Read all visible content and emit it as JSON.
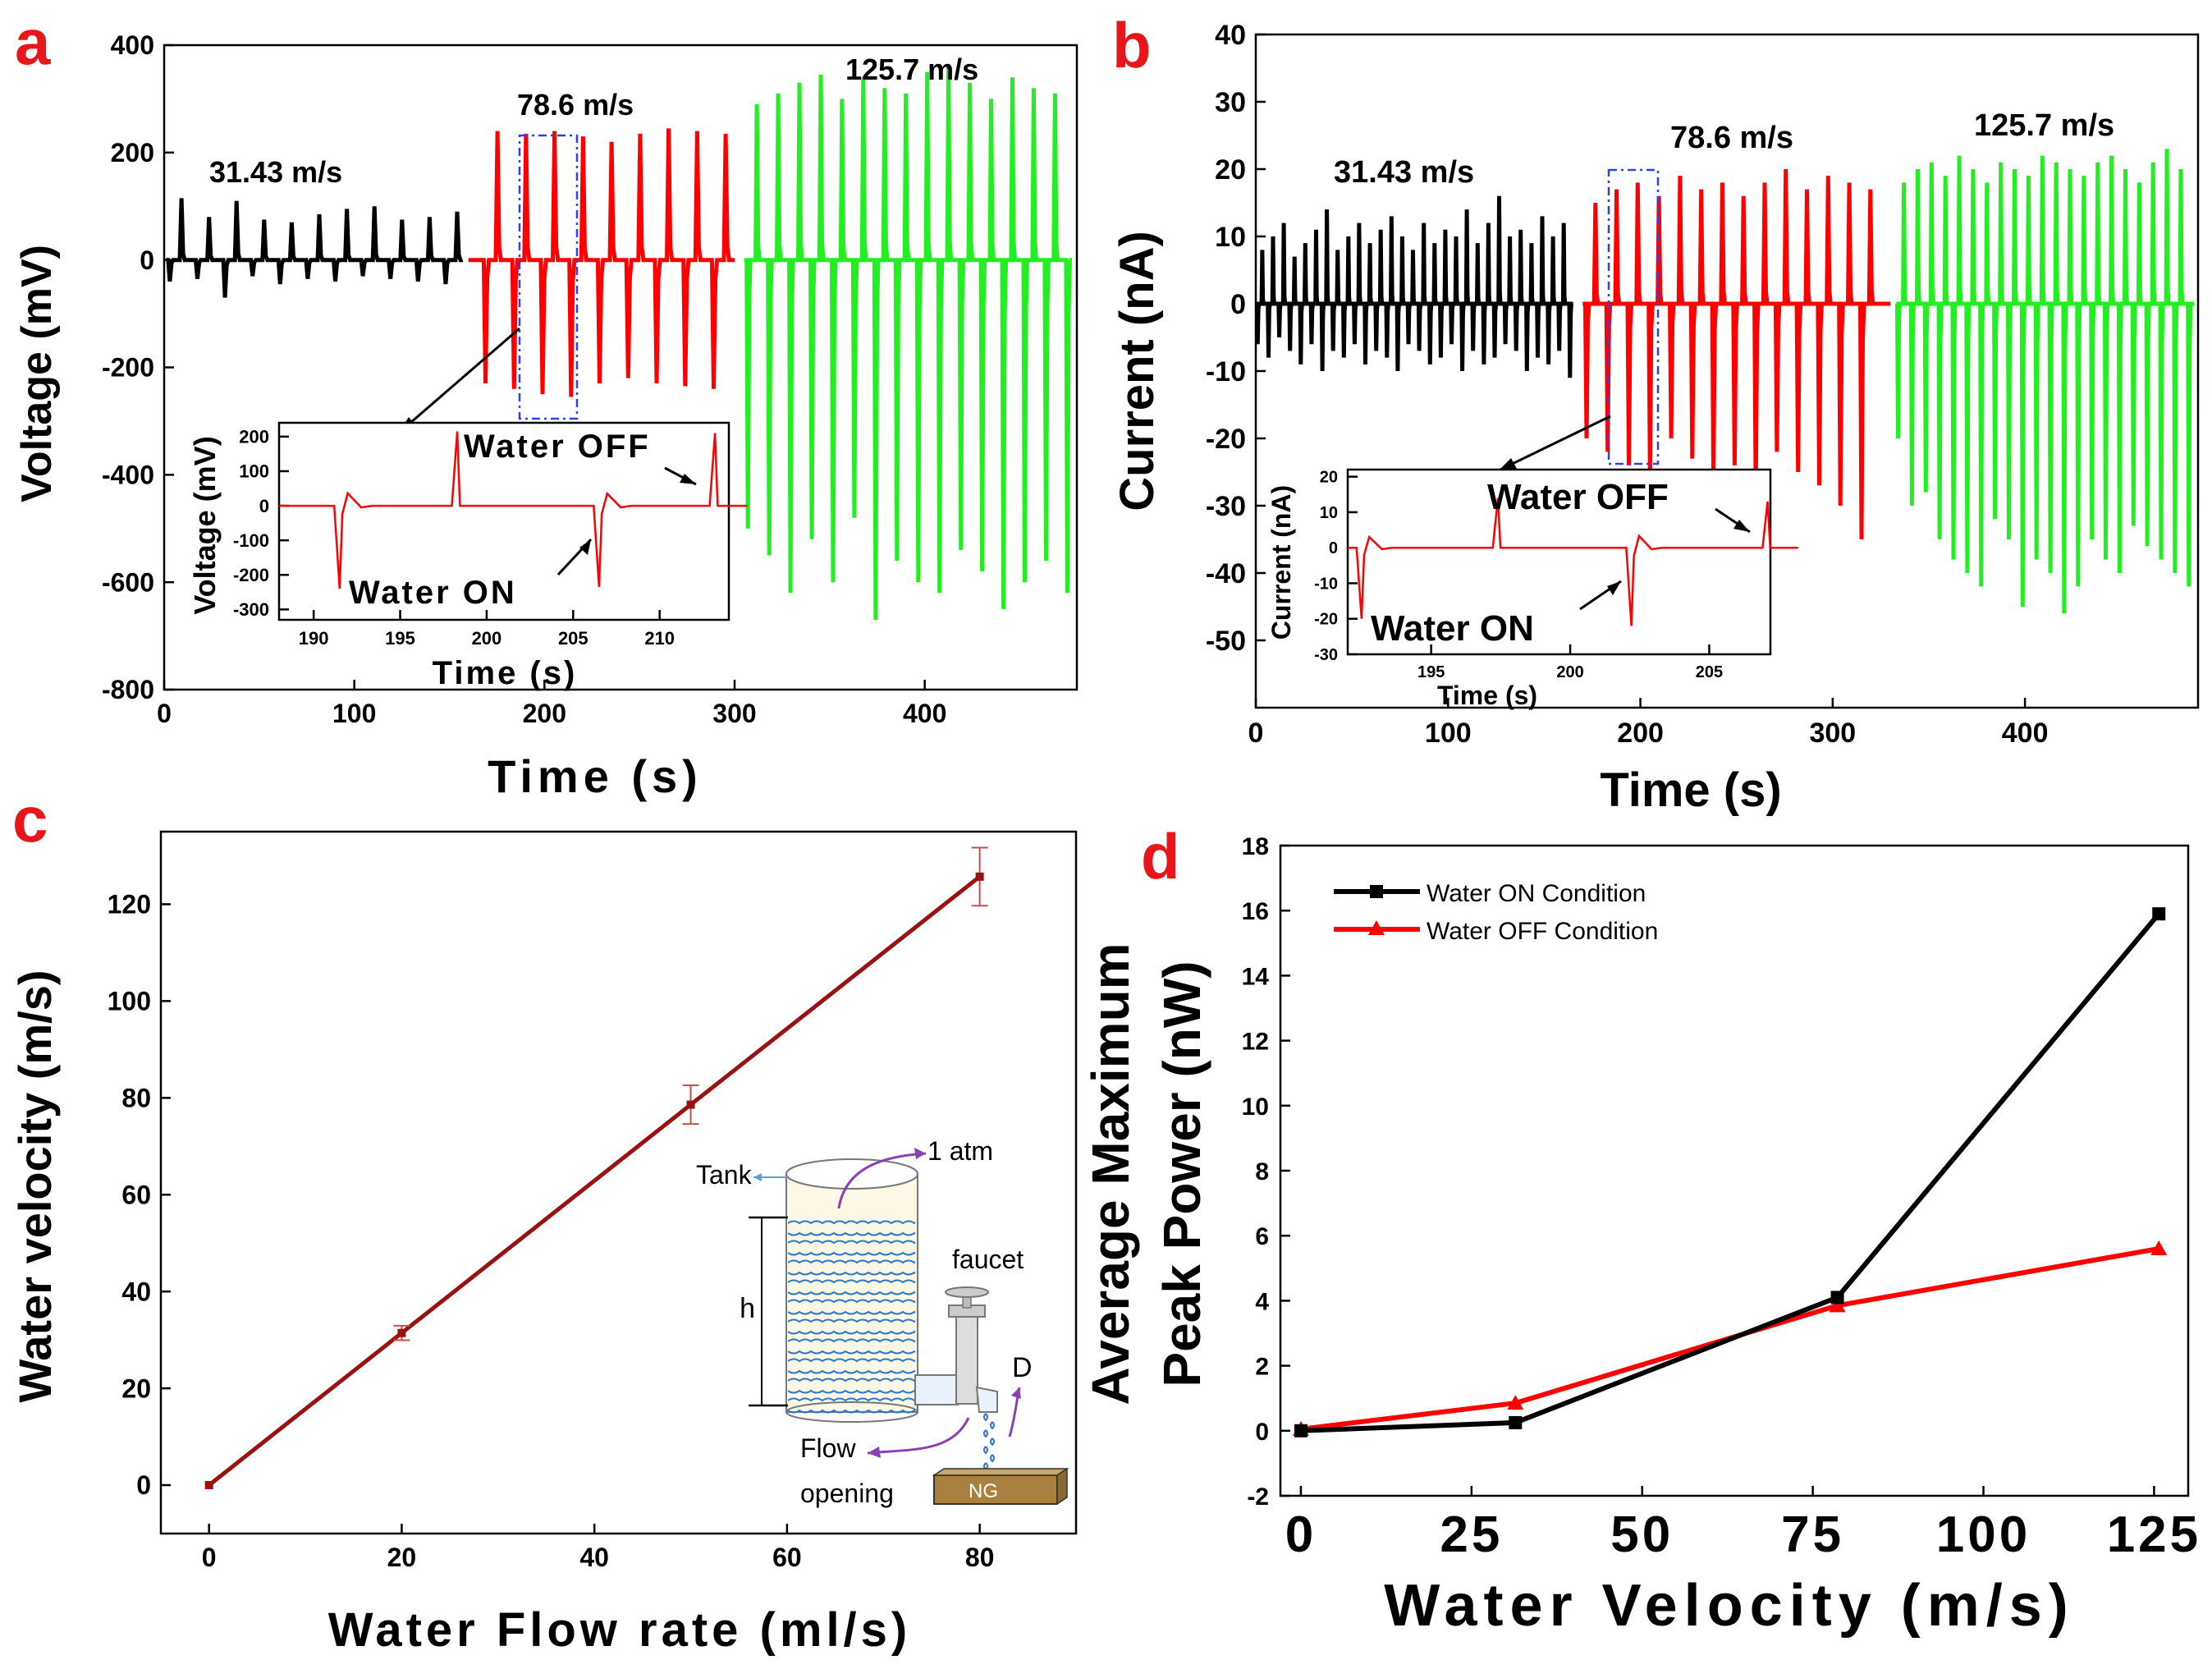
{
  "colors": {
    "accent": "#e8161b",
    "black": "#000000",
    "red": "#ff0000",
    "green": "#22ee22",
    "darkred": "#9b1111",
    "blue": "#2e42e8",
    "water": "#2f79c9",
    "ng": "#a8803f"
  },
  "chart_data": [
    {
      "panel": "a",
      "type": "line",
      "xlabel": "Time (s)",
      "ylabel": "Voltage (mV)",
      "xlim": [
        0,
        480
      ],
      "ylim": [
        -800,
        400
      ],
      "xticks": [
        0,
        100,
        200,
        300,
        400
      ],
      "yticks": [
        -800,
        -600,
        -400,
        -200,
        0,
        200,
        400
      ],
      "series": [
        {
          "name": "31.43 m/s",
          "color": "#000000",
          "t_start": 3,
          "t_end": 155,
          "period": 14.5,
          "phase": 3,
          "pos": [
            115,
            80,
            110,
            75,
            70,
            85,
            95,
            100,
            75,
            80,
            90
          ],
          "neg": [
            -40,
            -35,
            -70,
            -30,
            -45,
            -35,
            -40,
            -30,
            -35,
            -40,
            -45
          ]
        },
        {
          "name": "78.6 m/s",
          "color": "#ff0000",
          "t_start": 160,
          "t_end": 300,
          "period": 15,
          "phase": 169,
          "pos": [
            240,
            235,
            240,
            230,
            220,
            235,
            245,
            240,
            235,
            230
          ],
          "neg": [
            -230,
            -240,
            -250,
            -255,
            -230,
            -220,
            -230,
            -235,
            -240,
            -235
          ]
        },
        {
          "name": "125.7 m/s",
          "color": "#22ee22",
          "t_start": 305,
          "t_end": 476,
          "period": 11.2,
          "phase": 307,
          "pos": [
            290,
            310,
            330,
            345,
            300,
            340,
            320,
            310,
            350,
            360,
            330,
            300,
            340,
            320,
            310,
            350
          ],
          "neg": [
            -500,
            -550,
            -620,
            -520,
            -600,
            -480,
            -670,
            -560,
            -600,
            -620,
            -540,
            -580,
            -650,
            -600,
            -560,
            -620
          ]
        }
      ],
      "annotations": [
        "31.43 m/s",
        "78.6 m/s",
        "125.7 m/s"
      ],
      "inset": {
        "xlabel": "Time (s)",
        "ylabel": "Voltage (mV)",
        "xlim": [
          188,
          214
        ],
        "ylim": [
          -330,
          240
        ],
        "xticks": [
          190,
          195,
          200,
          205,
          210
        ],
        "yticks": [
          -300,
          -200,
          -100,
          0,
          100,
          200
        ],
        "on_events": [
          [
            191.5,
            -240
          ],
          [
            206.5,
            -235
          ]
        ],
        "off_events": [
          [
            198.3,
            215
          ],
          [
            213.2,
            210
          ]
        ],
        "labels": [
          "Water OFF",
          "Water ON"
        ]
      }
    },
    {
      "panel": "b",
      "type": "line",
      "xlabel": "Time (s)",
      "ylabel": "Current (nA)",
      "xlim": [
        0,
        490
      ],
      "ylim": [
        -60,
        40
      ],
      "xticks": [
        0,
        100,
        200,
        300,
        400
      ],
      "yticks": [
        -50,
        -40,
        -30,
        -20,
        -10,
        0,
        10,
        20,
        30,
        40
      ],
      "series": [
        {
          "name": "31.43 m/s",
          "color": "#000000",
          "t_start": 0,
          "t_end": 165,
          "period": 5.6,
          "phase": 1,
          "pos": [
            8,
            10,
            12,
            7,
            9,
            11,
            14,
            8,
            10,
            12,
            9,
            11,
            13,
            10,
            8,
            12,
            9,
            11,
            10,
            14,
            9,
            12,
            16,
            10,
            11,
            9,
            13,
            10,
            12,
            11
          ],
          "neg": [
            -6,
            -8,
            -5,
            -7,
            -9,
            -6,
            -10,
            -7,
            -8,
            -6,
            -9,
            -7,
            -8,
            -10,
            -6,
            -7,
            -9,
            -8,
            -6,
            -10,
            -7,
            -9,
            -8,
            -6,
            -7,
            -10,
            -8,
            -9,
            -7,
            -11
          ]
        },
        {
          "name": "78.6 m/s",
          "color": "#ff0000",
          "t_start": 170,
          "t_end": 330,
          "period": 11,
          "phase": 172,
          "pos": [
            15,
            17,
            18,
            16,
            19,
            17,
            18,
            16,
            18,
            20,
            17,
            19,
            18,
            17
          ],
          "neg": [
            -20,
            -22,
            -24,
            -25,
            -20,
            -23,
            -26,
            -24,
            -28,
            -22,
            -25,
            -27,
            -30,
            -35
          ]
        },
        {
          "name": "125.7 m/s",
          "color": "#22ee22",
          "t_start": 333,
          "t_end": 488,
          "period": 7.2,
          "phase": 334,
          "pos": [
            18,
            20,
            21,
            19,
            22,
            20,
            18,
            21,
            20,
            19,
            22,
            21,
            20,
            19,
            21,
            22,
            20,
            18,
            21,
            23,
            20,
            19
          ],
          "neg": [
            -20,
            -30,
            -28,
            -35,
            -38,
            -40,
            -42,
            -32,
            -35,
            -45,
            -38,
            -40,
            -46,
            -42,
            -35,
            -38,
            -40,
            -33,
            -36,
            -38,
            -40,
            -42
          ]
        }
      ],
      "annotations": [
        "31.43 m/s",
        "78.6 m/s",
        "125.7 m/s"
      ],
      "inset": {
        "xlabel": "Time (s)",
        "ylabel": "Current (nA)",
        "xlim": [
          192,
          207.2
        ],
        "ylim": [
          -30,
          22
        ],
        "xticks": [
          195,
          200,
          205
        ],
        "yticks": [
          -30,
          -20,
          -10,
          0,
          10,
          20
        ],
        "on_events": [
          [
            192.5,
            -20
          ],
          [
            202.2,
            -22
          ]
        ],
        "off_events": [
          [
            197.4,
            14
          ],
          [
            207.1,
            13
          ]
        ],
        "labels": [
          "Water OFF",
          "Water ON"
        ]
      }
    },
    {
      "panel": "c",
      "type": "line",
      "xlabel": "Water Flow rate (ml/s)",
      "ylabel": "Water velocity (m/s)",
      "xlim": [
        -5,
        90
      ],
      "ylim": [
        -10,
        135
      ],
      "xticks": [
        0,
        20,
        40,
        60,
        80
      ],
      "yticks": [
        0,
        20,
        40,
        60,
        80,
        100,
        120
      ],
      "x": [
        0,
        20,
        50,
        80
      ],
      "y": [
        0,
        31.43,
        78.6,
        125.7
      ],
      "yerr": [
        0,
        1.5,
        4,
        6
      ],
      "diagram_labels": [
        "Tank",
        "1 atm",
        "faucet",
        "h",
        "D",
        "Flow",
        "opening",
        "NG"
      ]
    },
    {
      "panel": "d",
      "type": "line",
      "xlabel": "Water Velocity (m/s)",
      "ylabel_line1": "Average Maximum",
      "ylabel_line2": "Peak Power (nW)",
      "xlim": [
        -3,
        130
      ],
      "ylim": [
        -2,
        18
      ],
      "xticks": [
        0,
        25,
        50,
        75,
        100,
        125
      ],
      "yticks": [
        -2,
        0,
        2,
        4,
        6,
        8,
        10,
        12,
        14,
        16,
        18
      ],
      "x": [
        0,
        31.43,
        78.6,
        125.7
      ],
      "series": [
        {
          "name": "Water ON Condition",
          "color": "#000000",
          "marker": "square",
          "values": [
            0,
            0.25,
            4.1,
            15.9
          ]
        },
        {
          "name": "Water OFF Condition",
          "color": "#ff0000",
          "marker": "triangle",
          "values": [
            0.05,
            0.85,
            3.85,
            5.6
          ]
        }
      ],
      "legend": "top-left"
    }
  ]
}
